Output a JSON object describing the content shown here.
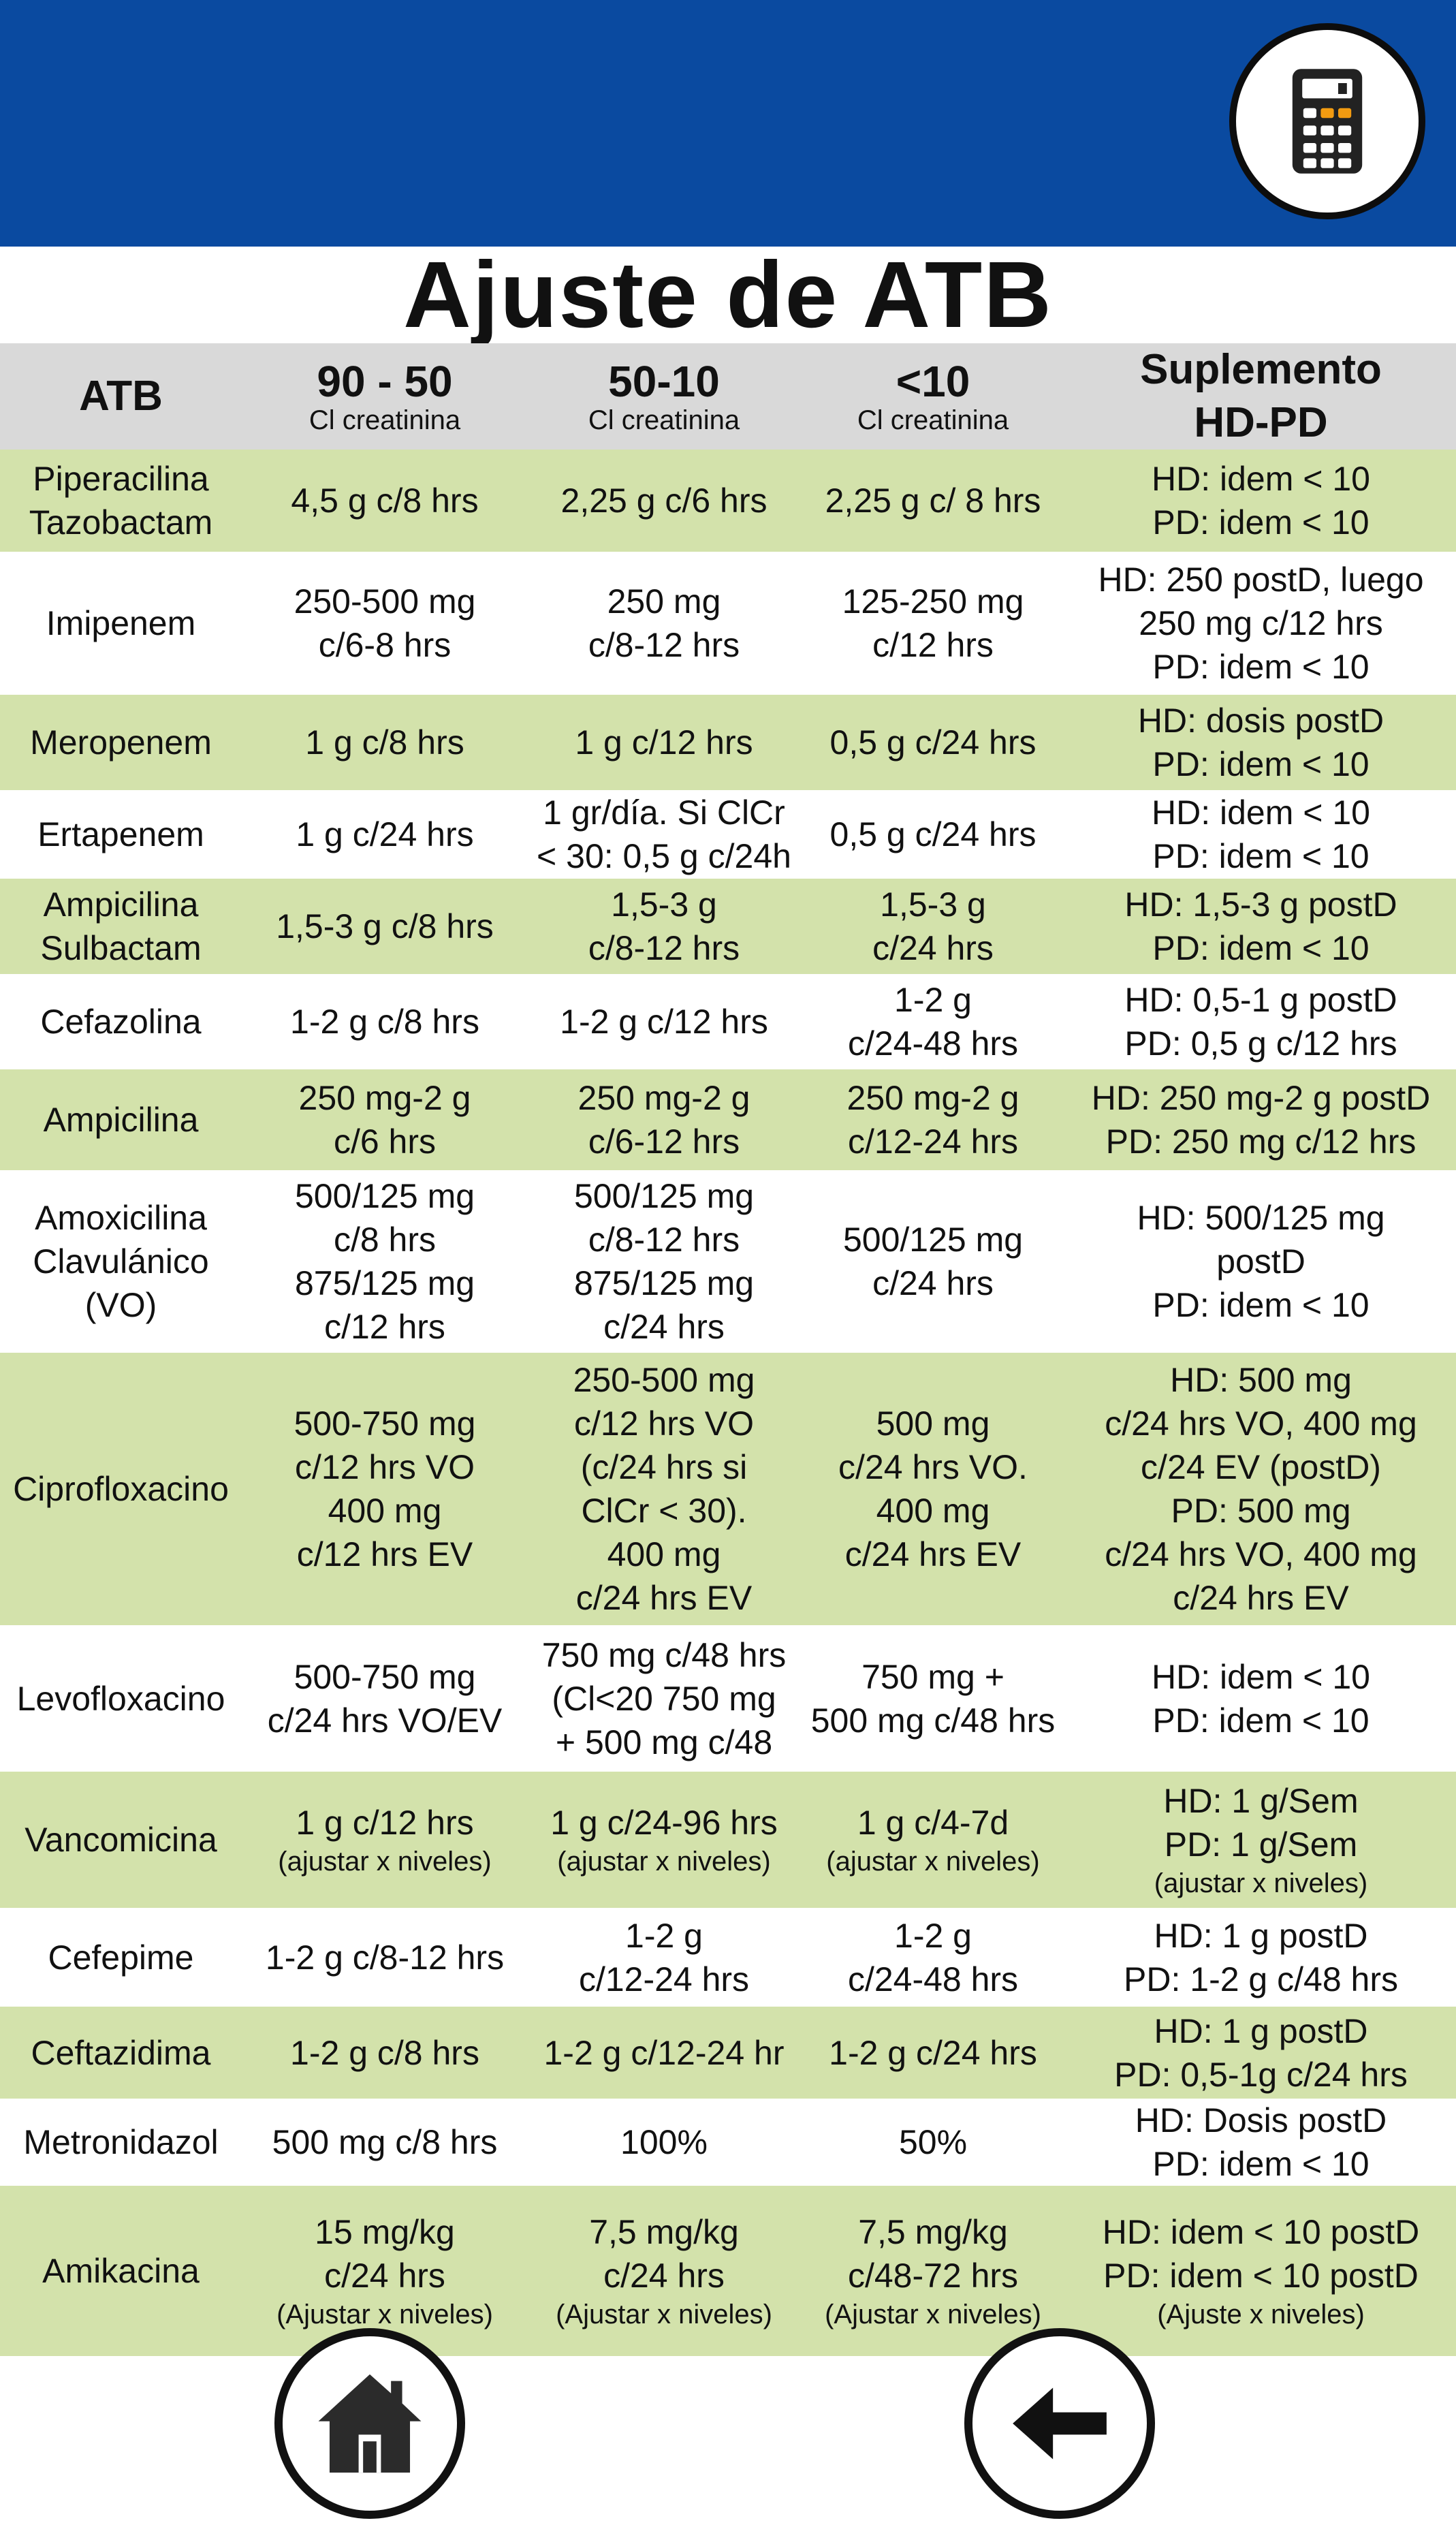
{
  "header": {
    "accent_color": "#0a4aa0",
    "calculator_icon": "calculator-icon"
  },
  "page_title": "Ajuste de ATB",
  "table": {
    "columns": [
      {
        "main": "ATB",
        "sub": ""
      },
      {
        "main": "90 - 50",
        "sub": "Cl creatinina"
      },
      {
        "main": "50-10",
        "sub": "Cl creatinina"
      },
      {
        "main": "<10",
        "sub": "Cl creatinina"
      },
      {
        "main": "Suplemento",
        "sub": "HD-PD"
      }
    ],
    "rows": [
      {
        "drug": [
          "Piperacilina",
          "Tazobactam"
        ],
        "c1": [
          "4,5 g c/8 hrs"
        ],
        "c2": [
          "2,25 g c/6 hrs"
        ],
        "c3": [
          "2,25 g c/ 8 hrs"
        ],
        "sup": [
          "HD: idem < 10",
          "PD: idem < 10"
        ]
      },
      {
        "drug": [
          "Imipenem"
        ],
        "c1": [
          "250-500 mg",
          "c/6-8 hrs"
        ],
        "c2": [
          "250 mg",
          "c/8-12 hrs"
        ],
        "c3": [
          "125-250 mg",
          "c/12 hrs"
        ],
        "sup": [
          "HD: 250 postD, luego",
          "250 mg c/12 hrs",
          "PD: idem < 10"
        ]
      },
      {
        "drug": [
          "Meropenem"
        ],
        "c1": [
          "1 g c/8 hrs"
        ],
        "c2": [
          "1 g c/12 hrs"
        ],
        "c3": [
          "0,5 g c/24 hrs"
        ],
        "sup": [
          "HD: dosis postD",
          "PD: idem < 10"
        ]
      },
      {
        "drug": [
          "Ertapenem"
        ],
        "c1": [
          "1 g c/24 hrs"
        ],
        "c2": [
          "1 gr/día. Si ClCr",
          "< 30: 0,5 g c/24h"
        ],
        "c3": [
          "0,5 g c/24 hrs"
        ],
        "sup": [
          "HD: idem < 10",
          "PD: idem < 10"
        ]
      },
      {
        "drug": [
          "Ampicilina",
          "Sulbactam"
        ],
        "c1": [
          "1,5-3 g c/8 hrs"
        ],
        "c2": [
          "1,5-3 g",
          "c/8-12 hrs"
        ],
        "c3": [
          "1,5-3 g",
          "c/24 hrs"
        ],
        "sup": [
          "HD: 1,5-3 g postD",
          "PD: idem < 10"
        ]
      },
      {
        "drug": [
          "Cefazolina"
        ],
        "c1": [
          "1-2 g c/8 hrs"
        ],
        "c2": [
          "1-2 g c/12 hrs"
        ],
        "c3": [
          "1-2 g",
          "c/24-48 hrs"
        ],
        "sup": [
          "HD: 0,5-1 g postD",
          "PD: 0,5 g c/12 hrs"
        ]
      },
      {
        "drug": [
          "Ampicilina"
        ],
        "c1": [
          "250 mg-2 g",
          "c/6 hrs"
        ],
        "c2": [
          "250 mg-2 g",
          "c/6-12 hrs"
        ],
        "c3": [
          "250 mg-2 g",
          "c/12-24 hrs"
        ],
        "sup": [
          "HD: 250 mg-2 g postD",
          "PD: 250 mg c/12 hrs"
        ]
      },
      {
        "drug": [
          "Amoxicilina",
          "Clavulánico",
          "(VO)"
        ],
        "c1": [
          "500/125 mg",
          "c/8 hrs",
          "875/125 mg",
          "c/12 hrs"
        ],
        "c2": [
          "500/125 mg",
          "c/8-12 hrs",
          "875/125 mg",
          "c/24 hrs"
        ],
        "c3": [
          "500/125 mg",
          "c/24 hrs"
        ],
        "sup": [
          "HD: 500/125 mg",
          "postD",
          "PD: idem < 10"
        ]
      },
      {
        "drug": [
          "Ciprofloxacino"
        ],
        "c1": [
          "500-750 mg",
          "c/12 hrs VO",
          "400 mg",
          "c/12 hrs EV"
        ],
        "c2": [
          "250-500 mg",
          "c/12 hrs VO",
          "(c/24 hrs si",
          "ClCr < 30).",
          "400 mg",
          "c/24 hrs EV"
        ],
        "c3": [
          "500 mg",
          "c/24 hrs VO.",
          "400 mg",
          "c/24 hrs EV"
        ],
        "sup": [
          "HD: 500 mg",
          "c/24 hrs VO, 400 mg",
          "c/24 EV (postD)",
          "PD: 500 mg",
          "c/24 hrs VO, 400 mg",
          "c/24 hrs EV"
        ]
      },
      {
        "drug": [
          "Levofloxacino"
        ],
        "c1": [
          "500-750 mg",
          "c/24 hrs VO/EV"
        ],
        "c2": [
          "750 mg c/48 hrs",
          "(Cl<20 750 mg",
          "+ 500 mg c/48"
        ],
        "c3": [
          "750 mg +",
          "500 mg c/48 hrs"
        ],
        "sup": [
          "HD: idem < 10",
          "PD: idem < 10"
        ]
      },
      {
        "drug": [
          "Vancomicina"
        ],
        "c1": [
          "1 g c/12 hrs"
        ],
        "c1_note": "(ajustar x niveles)",
        "c2": [
          "1 g c/24-96 hrs"
        ],
        "c2_note": "(ajustar x niveles)",
        "c3": [
          "1 g c/4-7d"
        ],
        "c3_note": "(ajustar x niveles)",
        "sup": [
          "HD: 1 g/Sem",
          "PD: 1 g/Sem"
        ],
        "sup_note": "(ajustar x niveles)"
      },
      {
        "drug": [
          "Cefepime"
        ],
        "c1": [
          "1-2 g c/8-12 hrs"
        ],
        "c2": [
          "1-2 g",
          "c/12-24 hrs"
        ],
        "c3": [
          "1-2 g",
          "c/24-48 hrs"
        ],
        "sup": [
          "HD: 1 g postD",
          "PD: 1-2 g c/48 hrs"
        ]
      },
      {
        "drug": [
          "Ceftazidima"
        ],
        "c1": [
          "1-2 g c/8 hrs"
        ],
        "c2": [
          "1-2 g c/12-24 hr"
        ],
        "c3": [
          "1-2 g c/24 hrs"
        ],
        "sup": [
          "HD: 1 g postD",
          "PD: 0,5-1g c/24 hrs"
        ]
      },
      {
        "drug": [
          "Metronidazol"
        ],
        "c1": [
          "500 mg c/8 hrs"
        ],
        "c2": [
          "100%"
        ],
        "c3": [
          "50%"
        ],
        "sup": [
          "HD: Dosis postD",
          "PD: idem < 10"
        ]
      },
      {
        "drug": [
          "Amikacina"
        ],
        "c1": [
          "15 mg/kg",
          "c/24 hrs"
        ],
        "c1_note": "(Ajustar x niveles)",
        "c2": [
          "7,5 mg/kg",
          "c/24 hrs"
        ],
        "c2_note": "(Ajustar x niveles)",
        "c3": [
          "7,5 mg/kg",
          "c/48-72 hrs"
        ],
        "c3_note": "(Ajustar x niveles)",
        "sup": [
          "HD: idem < 10 postD",
          "PD: idem < 10 postD"
        ],
        "sup_note": "(Ajuste x niveles)"
      }
    ]
  },
  "footer": {
    "home_icon": "home-icon",
    "back_icon": "arrow-left-icon"
  }
}
